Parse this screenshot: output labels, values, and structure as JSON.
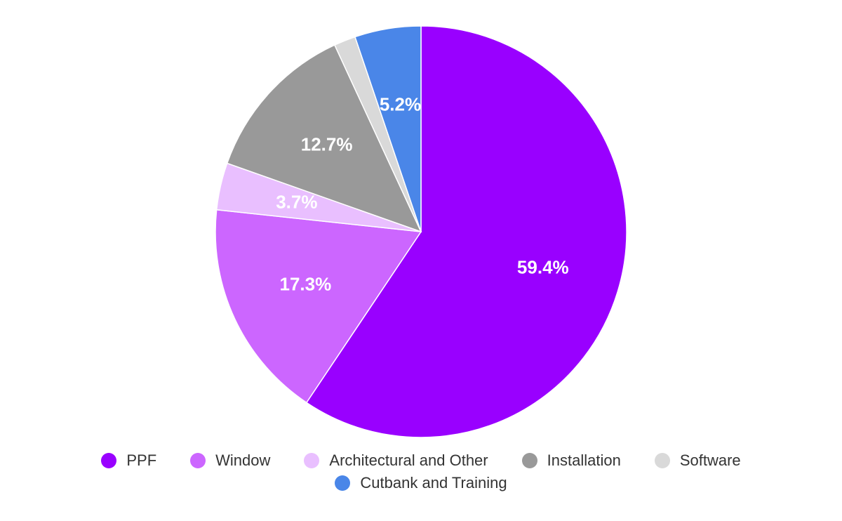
{
  "chart_data": {
    "type": "pie",
    "title": "",
    "categories": [
      "PPF",
      "Window",
      "Architectural and Other",
      "Installation",
      "Software",
      "Cutbank and Training"
    ],
    "values": [
      59.4,
      17.3,
      3.7,
      12.7,
      1.7,
      5.2
    ],
    "data_labels": [
      "59.4%",
      "17.3%",
      "3.7%",
      "12.7%",
      "",
      "5.2%"
    ],
    "colors": [
      "#9900ff",
      "#cc66ff",
      "#e9bfff",
      "#999999",
      "#d9d9d9",
      "#4a86e8"
    ],
    "start_angle_deg": 0,
    "direction": "clockwise",
    "legend_placement": "bottom",
    "legend_rows": [
      [
        0,
        1,
        2,
        3,
        4
      ],
      [
        5
      ]
    ]
  },
  "legend": {
    "items": [
      {
        "label": "PPF",
        "color": "#9900ff"
      },
      {
        "label": "Window",
        "color": "#cc66ff"
      },
      {
        "label": "Architectural and Other",
        "color": "#e9bfff"
      },
      {
        "label": "Installation",
        "color": "#999999"
      },
      {
        "label": "Software",
        "color": "#d9d9d9"
      },
      {
        "label": "Cutbank and Training",
        "color": "#4a86e8"
      }
    ]
  }
}
